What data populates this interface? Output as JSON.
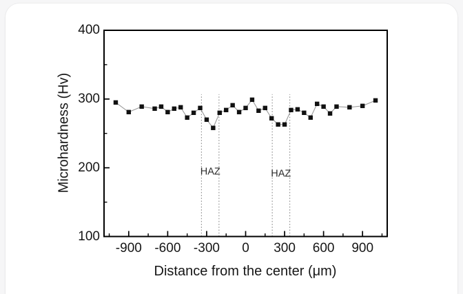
{
  "page": {
    "background": "#f6f6f7",
    "card_background": "#ffffff"
  },
  "chart_data": {
    "type": "scatter",
    "title": "",
    "xlabel": "Distance from the center (μm)",
    "ylabel": "Microhardness (Hv)",
    "xlim": [
      -1090,
      1090
    ],
    "ylim": [
      100,
      400
    ],
    "grid": false,
    "legend": "none",
    "x_major_ticks": [
      -900,
      -600,
      -300,
      0,
      300,
      600,
      900
    ],
    "x_minor_ticks": [
      -1050,
      -750,
      -450,
      -150,
      150,
      450,
      750,
      1050
    ],
    "y_major_ticks": [
      400,
      300,
      200,
      100
    ],
    "y_minor_ticks": [
      350,
      250,
      150
    ],
    "marker": "filled-square",
    "marker_color": "#111111",
    "line_color": "#9a9a9a",
    "axis_color": "#000000",
    "series": [
      {
        "name": "microhardness-profile",
        "x": [
          -1000,
          -900,
          -800,
          -700,
          -650,
          -600,
          -550,
          -500,
          -450,
          -400,
          -350,
          -300,
          -250,
          -200,
          -150,
          -100,
          -50,
          0,
          50,
          100,
          150,
          200,
          250,
          300,
          350,
          400,
          450,
          500,
          550,
          600,
          650,
          700,
          800,
          900,
          1000
        ],
        "y": [
          295,
          281,
          289,
          286,
          289,
          281,
          286,
          288,
          273,
          280,
          287,
          270,
          258,
          280,
          284,
          291,
          281,
          287,
          299,
          283,
          287,
          272,
          263,
          263,
          284,
          285,
          280,
          273,
          293,
          289,
          279,
          289,
          288,
          290,
          298
        ]
      }
    ],
    "reference_lines": {
      "style": "dotted",
      "color": "#8a8a8a",
      "x_values": [
        -340,
        -205,
        205,
        340
      ],
      "y_top": 307
    },
    "annotations": [
      {
        "text": "HAZ",
        "x": -272,
        "y": 190
      },
      {
        "text": "HAZ",
        "x": 272,
        "y": 187
      }
    ]
  }
}
